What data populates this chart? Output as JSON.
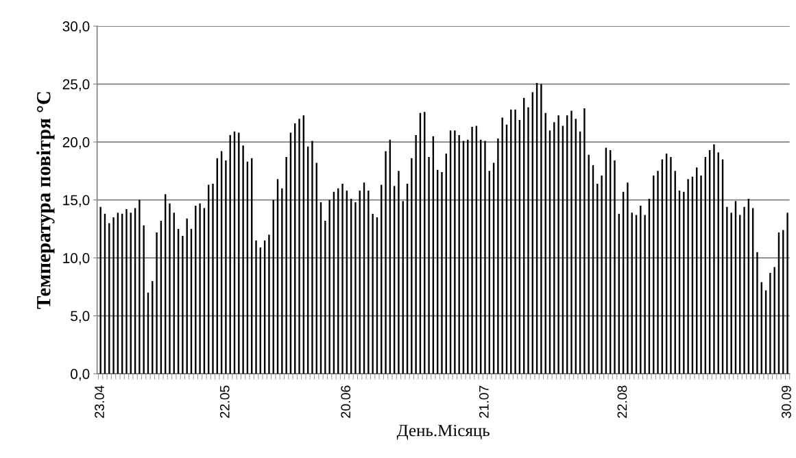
{
  "chart_data": {
    "type": "bar",
    "xlabel": "День.Місяць",
    "ylabel": "Температура повітря °C",
    "categories": [
      "23.04",
      null,
      null,
      null,
      null,
      null,
      null,
      null,
      null,
      null,
      null,
      null,
      null,
      null,
      null,
      null,
      null,
      null,
      null,
      null,
      null,
      null,
      null,
      null,
      null,
      null,
      null,
      null,
      null,
      "22.05",
      null,
      null,
      null,
      null,
      null,
      null,
      null,
      null,
      null,
      null,
      null,
      null,
      null,
      null,
      null,
      null,
      null,
      null,
      null,
      null,
      null,
      null,
      null,
      null,
      null,
      null,
      null,
      "20.06",
      null,
      null,
      null,
      null,
      null,
      null,
      null,
      null,
      null,
      null,
      null,
      null,
      null,
      null,
      null,
      null,
      null,
      null,
      null,
      null,
      null,
      null,
      null,
      null,
      null,
      null,
      null,
      null,
      null,
      null,
      null,
      "21.07",
      null,
      null,
      null,
      null,
      null,
      null,
      null,
      null,
      null,
      null,
      null,
      null,
      null,
      null,
      null,
      null,
      null,
      null,
      null,
      null,
      null,
      null,
      null,
      null,
      null,
      null,
      null,
      null,
      null,
      null,
      null,
      "22.08",
      null,
      null,
      null,
      null,
      null,
      null,
      null,
      null,
      null,
      null,
      null,
      null,
      null,
      null,
      null,
      null,
      null,
      null,
      null,
      null,
      null,
      null,
      null,
      null,
      null,
      null,
      null,
      null,
      null,
      null,
      null,
      null,
      null,
      null,
      null,
      null,
      null,
      "30.09"
    ],
    "values": [
      14.4,
      13.8,
      13.0,
      13.5,
      13.9,
      13.8,
      14.2,
      13.9,
      14.3,
      15.0,
      12.8,
      7.0,
      8.0,
      12.2,
      13.2,
      15.5,
      14.7,
      13.9,
      12.5,
      11.9,
      13.4,
      12.5,
      14.5,
      14.7,
      14.3,
      16.3,
      16.4,
      18.6,
      19.2,
      18.4,
      20.6,
      20.9,
      20.8,
      19.7,
      18.3,
      18.6,
      11.5,
      10.9,
      11.5,
      12.0,
      15.0,
      16.8,
      16.0,
      18.7,
      20.8,
      21.6,
      22.0,
      22.3,
      19.6,
      20.1,
      18.2,
      14.8,
      13.2,
      15.0,
      15.7,
      16.0,
      16.4,
      15.8,
      15.1,
      14.8,
      15.8,
      16.5,
      15.8,
      13.8,
      13.5,
      16.3,
      19.2,
      20.2,
      16.2,
      17.5,
      14.9,
      16.4,
      18.6,
      20.6,
      22.5,
      22.6,
      18.7,
      20.5,
      17.6,
      17.4,
      19.0,
      21.0,
      21.0,
      20.6,
      20.1,
      20.2,
      21.3,
      21.4,
      20.2,
      20.1,
      17.5,
      18.2,
      20.3,
      22.1,
      21.5,
      22.8,
      22.8,
      21.9,
      23.8,
      23.0,
      24.3,
      25.1,
      25.0,
      22.5,
      21.0,
      21.7,
      22.3,
      21.4,
      22.3,
      22.7,
      22.0,
      20.9,
      22.9,
      18.9,
      18.0,
      16.4,
      17.1,
      19.5,
      19.3,
      18.4,
      13.8,
      15.7,
      16.5,
      13.9,
      13.7,
      14.5,
      13.7,
      15.1,
      17.1,
      17.5,
      18.5,
      19.0,
      18.7,
      17.5,
      15.8,
      15.7,
      16.8,
      17.0,
      17.8,
      17.1,
      18.7,
      19.3,
      19.8,
      19.1,
      18.5,
      14.4,
      13.9,
      14.9,
      13.7,
      14.4,
      15.1,
      14.3,
      10.5,
      7.9,
      7.2,
      8.7,
      9.2,
      12.2,
      12.4,
      13.9
    ],
    "color": "#000000",
    "ylim": [
      0,
      30
    ],
    "yticks": [
      {
        "value": 0,
        "label": "0,0"
      },
      {
        "value": 5,
        "label": "5,0"
      },
      {
        "value": 10,
        "label": "10,0"
      },
      {
        "value": 15,
        "label": "15,0"
      },
      {
        "value": 20,
        "label": "20,0"
      },
      {
        "value": 25,
        "label": "25,0"
      },
      {
        "value": 30,
        "label": "30,0"
      }
    ],
    "grid": "y"
  }
}
